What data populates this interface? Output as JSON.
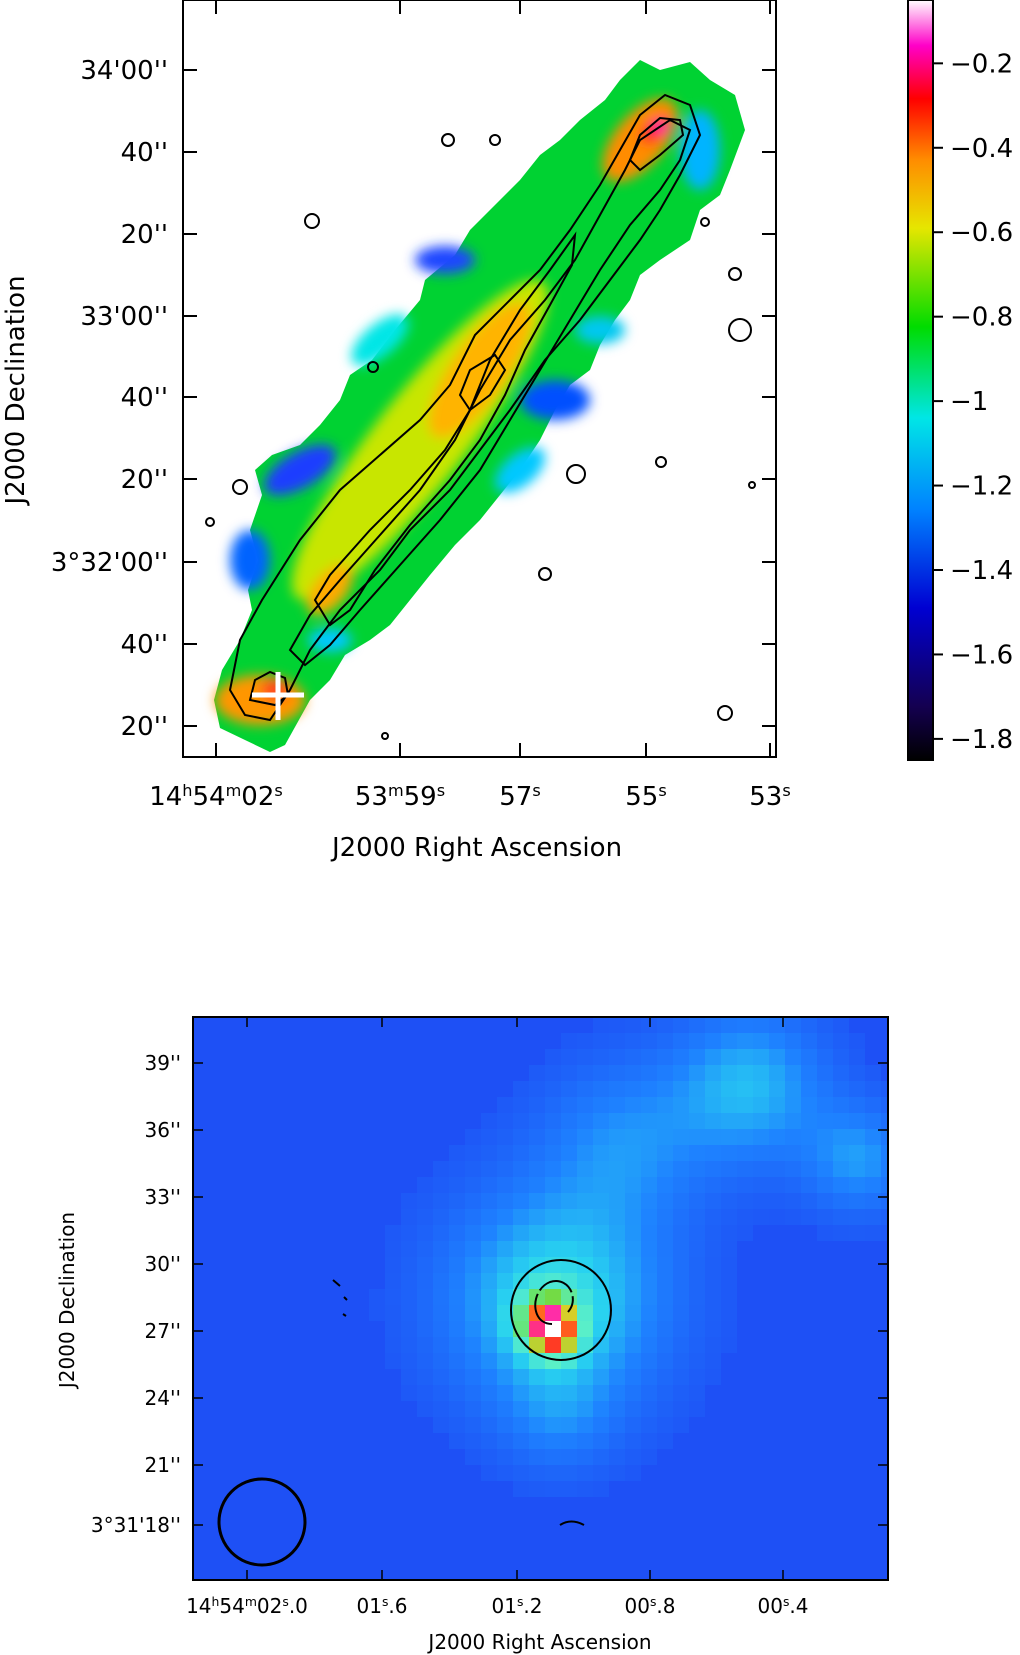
{
  "chart_data": [
    {
      "type": "heatmap",
      "panel": "top",
      "xlabel": "J2000 Right Ascension",
      "ylabel": "J2000 Declination",
      "x_ticks": [
        {
          "h": "14",
          "m": "54",
          "s": "02"
        },
        {
          "m": "53",
          "s": "59"
        },
        {
          "s": "57"
        },
        {
          "s": "55"
        },
        {
          "s": "53"
        }
      ],
      "y_ticks": [
        "34'00''",
        "40''",
        "20''",
        "33'00''",
        "40''",
        "20''",
        "3°32'00''",
        "40''",
        "20''"
      ],
      "colorbar": {
        "labels": [
          "−0.2",
          "−0.4",
          "−0.6",
          "−0.8",
          "−1",
          "−1.2",
          "−1.4",
          "−1.6",
          "−1.8"
        ],
        "vmin": -1.85,
        "vmax": -0.05
      },
      "marker": "plus",
      "contours": 4,
      "colors": [
        "#000000",
        "#0000c8",
        "#0082ff",
        "#00e6e6",
        "#00dc00",
        "#e6e600",
        "#ff8c00",
        "#ff0000",
        "#ff00c8",
        "#ffffff"
      ]
    },
    {
      "type": "heatmap",
      "panel": "bottom",
      "xlabel": "J2000 Right Ascension",
      "ylabel": "J2000 Declination",
      "x_ticks": [
        {
          "h": "14",
          "m": "54",
          "s": "02",
          "frac": ".0"
        },
        {
          "pre": "01",
          "s": "",
          "frac": ".6"
        },
        {
          "pre": "01",
          "s": "",
          "frac": ".2"
        },
        {
          "pre": "00",
          "s": "",
          "frac": ".8"
        },
        {
          "pre": "00",
          "s": "",
          "frac": ".4"
        }
      ],
      "y_ticks": [
        "39''",
        "36''",
        "33''",
        "30''",
        "27''",
        "24''",
        "21''",
        "3°31'18''"
      ],
      "beam": "circle",
      "colors": [
        "#1e5aff",
        "#28c8ff",
        "#5af0d2",
        "#6edc46",
        "#ffc81e",
        "#ff3c1e",
        "#ff28d2",
        "#ffffff"
      ]
    }
  ]
}
